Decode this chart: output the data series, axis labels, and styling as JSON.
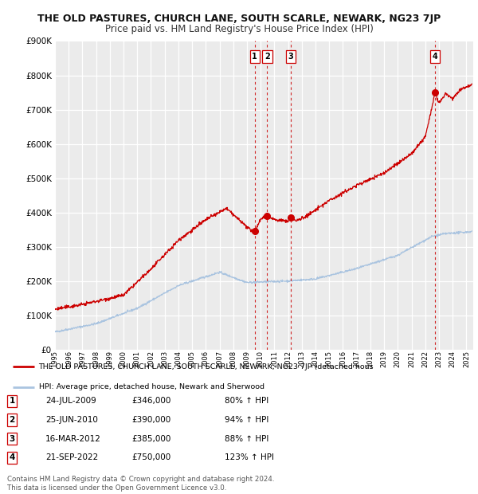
{
  "title": "THE OLD PASTURES, CHURCH LANE, SOUTH SCARLE, NEWARK, NG23 7JP",
  "subtitle": "Price paid vs. HM Land Registry's House Price Index (HPI)",
  "ylim": [
    0,
    900000
  ],
  "yticks": [
    0,
    100000,
    200000,
    300000,
    400000,
    500000,
    600000,
    700000,
    800000,
    900000
  ],
  "ytick_labels": [
    "£0",
    "£100K",
    "£200K",
    "£300K",
    "£400K",
    "£500K",
    "£600K",
    "£700K",
    "£800K",
    "£900K"
  ],
  "xlim_start": 1995.0,
  "xlim_end": 2025.5,
  "hpi_color": "#aac4e0",
  "property_color": "#cc0000",
  "background_color": "#ebebeb",
  "grid_color": "#ffffff",
  "transactions": [
    {
      "label": "1",
      "date_num": 2009.56,
      "price": 346000
    },
    {
      "label": "2",
      "date_num": 2010.48,
      "price": 390000
    },
    {
      "label": "3",
      "date_num": 2012.21,
      "price": 385000
    },
    {
      "label": "4",
      "date_num": 2022.73,
      "price": 750000
    }
  ],
  "legend_property_label": "THE OLD PASTURES, CHURCH LANE, SOUTH SCARLE, NEWARK, NG23 7JP (detached hous",
  "legend_hpi_label": "HPI: Average price, detached house, Newark and Sherwood",
  "table_rows": [
    [
      "1",
      "24-JUL-2009",
      "£346,000",
      "80% ↑ HPI"
    ],
    [
      "2",
      "25-JUN-2010",
      "£390,000",
      "94% ↑ HPI"
    ],
    [
      "3",
      "16-MAR-2012",
      "£385,000",
      "88% ↑ HPI"
    ],
    [
      "4",
      "21-SEP-2022",
      "£750,000",
      "123% ↑ HPI"
    ]
  ],
  "footer": "Contains HM Land Registry data © Crown copyright and database right 2024.\nThis data is licensed under the Open Government Licence v3.0."
}
